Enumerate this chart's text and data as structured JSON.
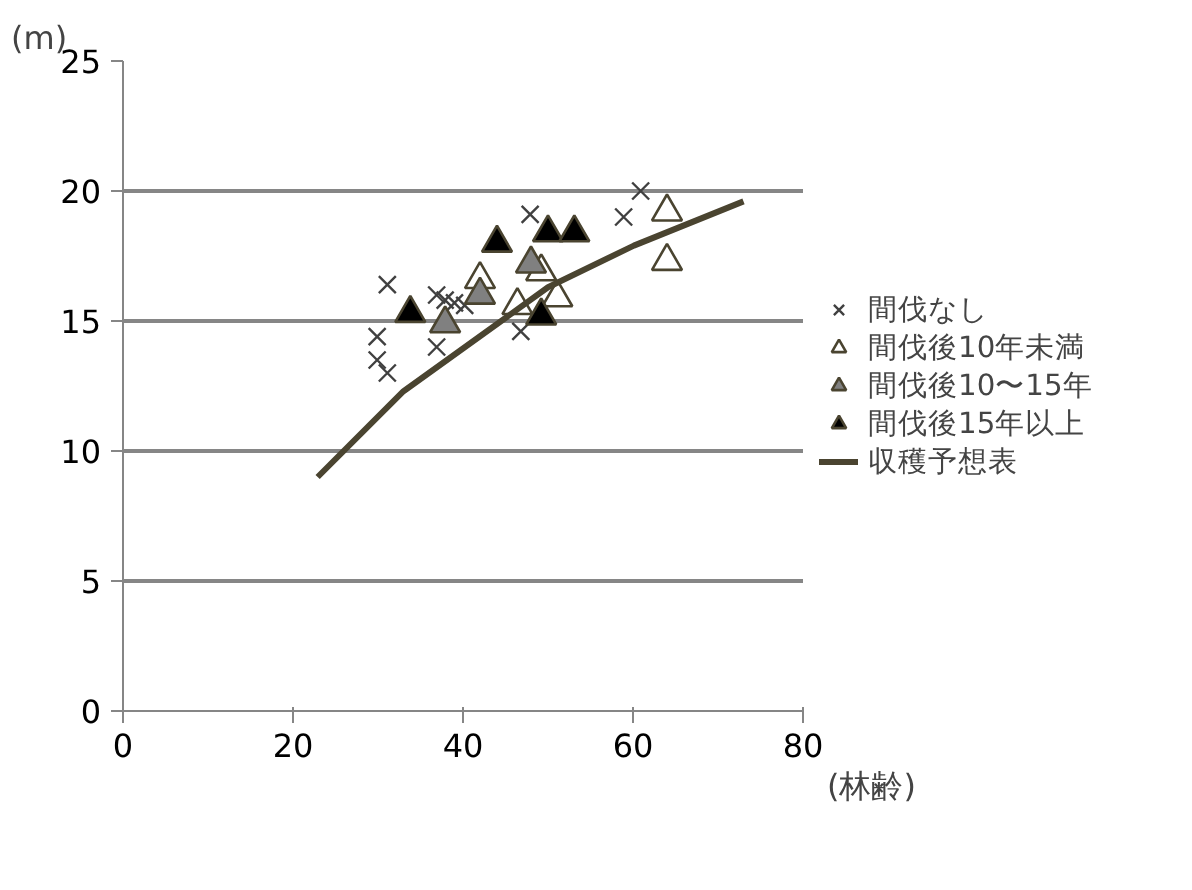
{
  "chart_data": {
    "type": "scatter",
    "xlabel": "(林齢)",
    "ylabel": "(m)",
    "xlim": [
      0,
      80
    ],
    "xticks": [
      0,
      20,
      40,
      60,
      80
    ],
    "ylim": [
      0,
      25
    ],
    "yticks": [
      0,
      5,
      10,
      15,
      20,
      25
    ],
    "grid": "y",
    "legend": "right",
    "series": [
      {
        "name": "間伐なし",
        "marker": "cross",
        "color": "#404040",
        "x": [
          31.1,
          29.9,
          29.9,
          31.1,
          36.9,
          36.9,
          37.9,
          39.0,
          40.2,
          47.9,
          46.8,
          58.9,
          60.9
        ],
        "values": [
          16.4,
          14.4,
          13.5,
          13.0,
          16.0,
          14.0,
          15.8,
          15.7,
          15.6,
          19.1,
          14.6,
          19.0,
          20.0
        ]
      },
      {
        "name": "間伐後10年未満",
        "marker": "triangle",
        "color": "#ffffff",
        "x": [
          42.0,
          46.4,
          49.2,
          51.1,
          64.0,
          64.0
        ],
        "values": [
          16.6,
          15.6,
          16.9,
          15.9,
          19.2,
          17.3
        ]
      },
      {
        "name": "間伐後10〜15年",
        "marker": "triangle",
        "color": "#808080",
        "x": [
          37.9,
          42.0,
          48.0
        ],
        "values": [
          14.9,
          16.0,
          17.2
        ]
      },
      {
        "name": "間伐後15年以上",
        "marker": "triangle",
        "color": "#000000",
        "x": [
          33.8,
          44.0,
          50.0,
          53.1,
          49.2
        ],
        "values": [
          15.3,
          18.0,
          18.4,
          18.4,
          15.2
        ]
      },
      {
        "name": "収穫予想表",
        "type": "line",
        "marker": "none",
        "color": "#4a4430",
        "x": [
          22.9,
          33.0,
          44.5,
          50.0,
          60.1,
          73.0
        ],
        "values": [
          9.0,
          12.3,
          15.0,
          16.3,
          17.9,
          19.6
        ]
      }
    ]
  }
}
